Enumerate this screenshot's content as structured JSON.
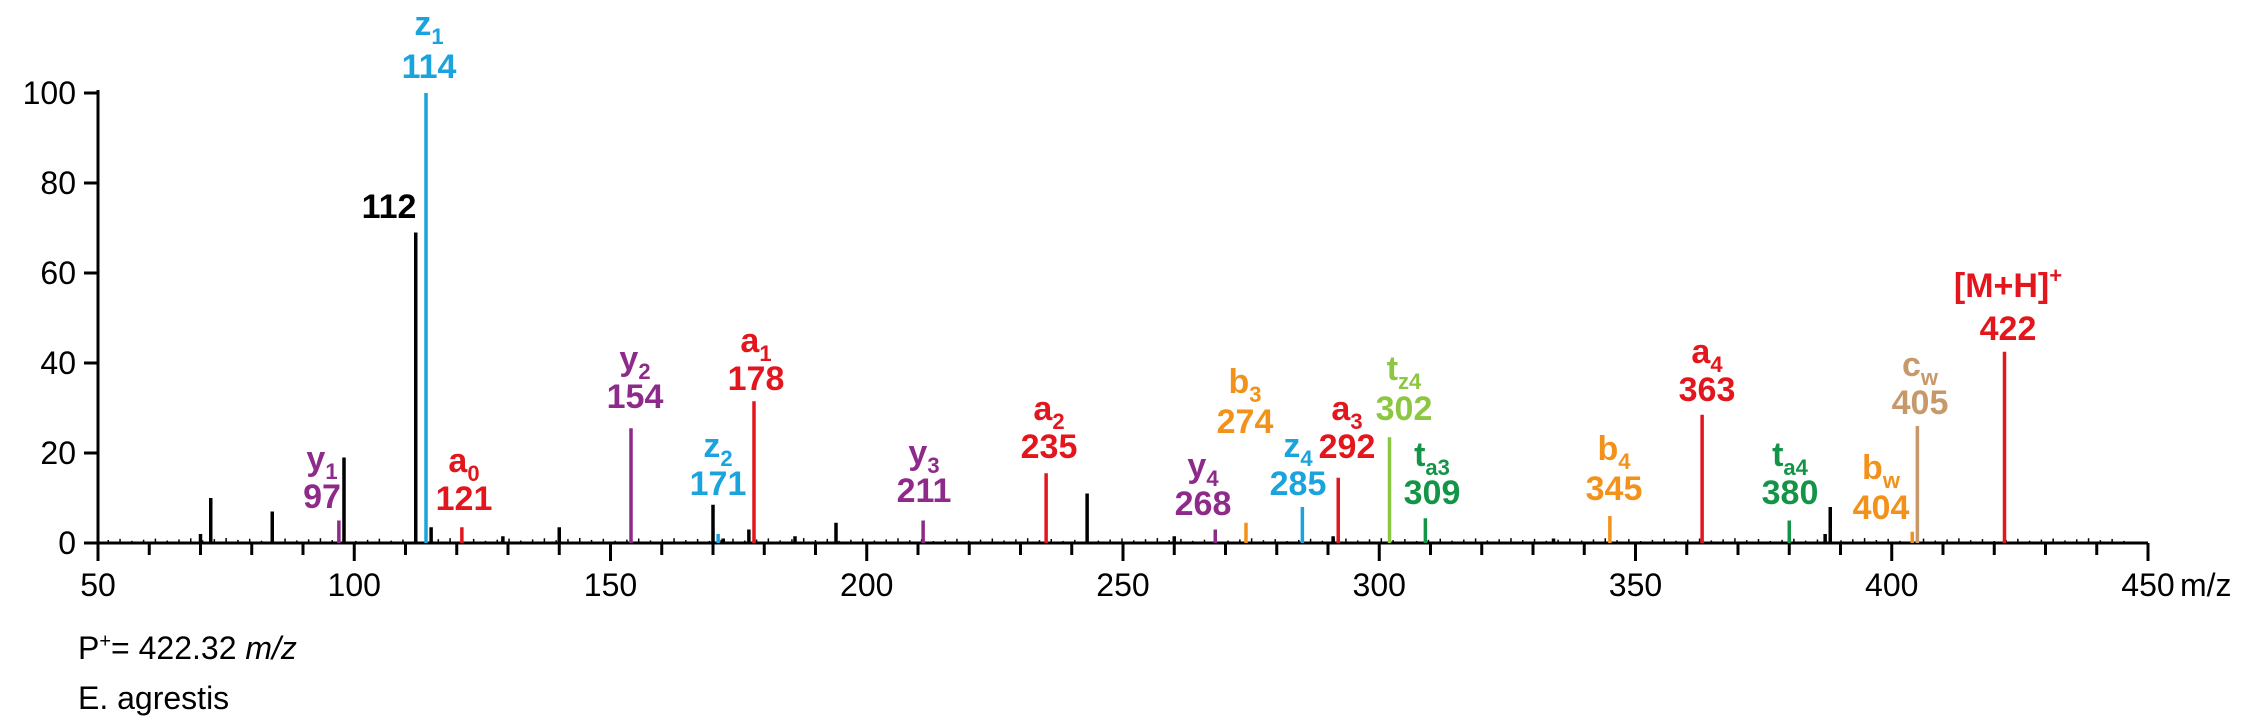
{
  "chart_data": {
    "type": "bar",
    "xlim": [
      50,
      450
    ],
    "ylim": [
      0,
      100
    ],
    "x_ticks": [
      50,
      100,
      150,
      200,
      250,
      300,
      350,
      400,
      450
    ],
    "x_tick_labels": [
      "50",
      "100",
      "150",
      "200",
      "250",
      "300",
      "350",
      "400",
      "450"
    ],
    "x_unit": "m/z",
    "y_ticks": [
      0,
      20,
      40,
      60,
      80,
      100
    ],
    "y_tick_labels": [
      "0",
      "20",
      "40",
      "60",
      "80",
      "100"
    ],
    "colors": {
      "black": "#000000",
      "a": "#e3161d",
      "z": "#1aa3dd",
      "y": "#8e2a8a",
      "b": "#f3921b",
      "c": "#c7996a",
      "t_light": "#8dc641",
      "t_dark": "#139447"
    },
    "unlabeled_peaks": [
      {
        "mz": 70,
        "intensity": 2
      },
      {
        "mz": 72,
        "intensity": 10
      },
      {
        "mz": 84,
        "intensity": 7
      },
      {
        "mz": 98,
        "intensity": 19
      },
      {
        "mz": 115,
        "intensity": 3.5
      },
      {
        "mz": 129,
        "intensity": 1.5
      },
      {
        "mz": 140,
        "intensity": 3.5
      },
      {
        "mz": 170,
        "intensity": 8.5
      },
      {
        "mz": 177,
        "intensity": 3
      },
      {
        "mz": 186,
        "intensity": 1.5
      },
      {
        "mz": 194,
        "intensity": 4.5
      },
      {
        "mz": 243,
        "intensity": 11
      },
      {
        "mz": 260,
        "intensity": 1.5
      },
      {
        "mz": 291,
        "intensity": 1.5
      },
      {
        "mz": 334,
        "intensity": 1
      },
      {
        "mz": 388,
        "intensity": 8
      },
      {
        "mz": 387,
        "intensity": 2
      },
      {
        "mz": 172,
        "intensity": 1
      }
    ],
    "labeled_peaks": [
      {
        "mz": 112,
        "intensity": 69,
        "ion": "",
        "sub": "",
        "mz_label": "112",
        "color": "#000000"
      },
      {
        "mz": 114,
        "intensity": 100,
        "ion": "z",
        "sub": "1",
        "mz_label": "114",
        "color": "#1aa3dd"
      },
      {
        "mz": 97,
        "intensity": 5,
        "ion": "y",
        "sub": "1",
        "mz_label": "97",
        "color": "#8e2a8a"
      },
      {
        "mz": 121,
        "intensity": 3.5,
        "ion": "a",
        "sub": "0",
        "mz_label": "121",
        "color": "#e3161d"
      },
      {
        "mz": 154,
        "intensity": 25.5,
        "ion": "y",
        "sub": "2",
        "mz_label": "154",
        "color": "#8e2a8a"
      },
      {
        "mz": 171,
        "intensity": 2,
        "ion": "z",
        "sub": "2",
        "mz_label": "171",
        "color": "#1aa3dd"
      },
      {
        "mz": 178,
        "intensity": 31.5,
        "ion": "a",
        "sub": "1",
        "mz_label": "178",
        "color": "#e3161d"
      },
      {
        "mz": 211,
        "intensity": 5,
        "ion": "y",
        "sub": "3",
        "mz_label": "211",
        "color": "#8e2a8a"
      },
      {
        "mz": 235,
        "intensity": 15.5,
        "ion": "a",
        "sub": "2",
        "mz_label": "235",
        "color": "#e3161d"
      },
      {
        "mz": 268,
        "intensity": 3,
        "ion": "y",
        "sub": "4",
        "mz_label": "268",
        "color": "#8e2a8a"
      },
      {
        "mz": 274,
        "intensity": 4.5,
        "ion": "b",
        "sub": "3",
        "mz_label": "274",
        "color": "#f3921b"
      },
      {
        "mz": 285,
        "intensity": 8,
        "ion": "z",
        "sub": "4",
        "mz_label": "285",
        "color": "#1aa3dd"
      },
      {
        "mz": 292,
        "intensity": 14.5,
        "ion": "a",
        "sub": "3",
        "mz_label": "292",
        "color": "#e3161d"
      },
      {
        "mz": 302,
        "intensity": 23.5,
        "ion": "t",
        "sub": "z4",
        "mz_label": "302",
        "color": "#8dc641"
      },
      {
        "mz": 309,
        "intensity": 5.5,
        "ion": "t",
        "sub": "a3",
        "mz_label": "309",
        "color": "#139447"
      },
      {
        "mz": 345,
        "intensity": 6,
        "ion": "b",
        "sub": "4",
        "mz_label": "345",
        "color": "#f3921b"
      },
      {
        "mz": 363,
        "intensity": 28.5,
        "ion": "a",
        "sub": "4",
        "mz_label": "363",
        "color": "#e3161d"
      },
      {
        "mz": 380,
        "intensity": 5,
        "ion": "t",
        "sub": "a4",
        "mz_label": "380",
        "color": "#139447"
      },
      {
        "mz": 404,
        "intensity": 2.5,
        "ion": "b",
        "sub": "w",
        "mz_label": "404",
        "color": "#f3921b"
      },
      {
        "mz": 405,
        "intensity": 26,
        "ion": "c",
        "sub": "w",
        "mz_label": "405",
        "color": "#c7996a"
      },
      {
        "mz": 422,
        "intensity": 42.5,
        "ion": "[M+H]",
        "sub": "+",
        "mz_label": "422",
        "color": "#e3161d"
      }
    ]
  },
  "footnote": {
    "precursor_prefix": "P",
    "precursor_sup": "+",
    "precursor_value": "= 422.32 ",
    "precursor_unit": "m/z",
    "species": "E. agrestis"
  }
}
